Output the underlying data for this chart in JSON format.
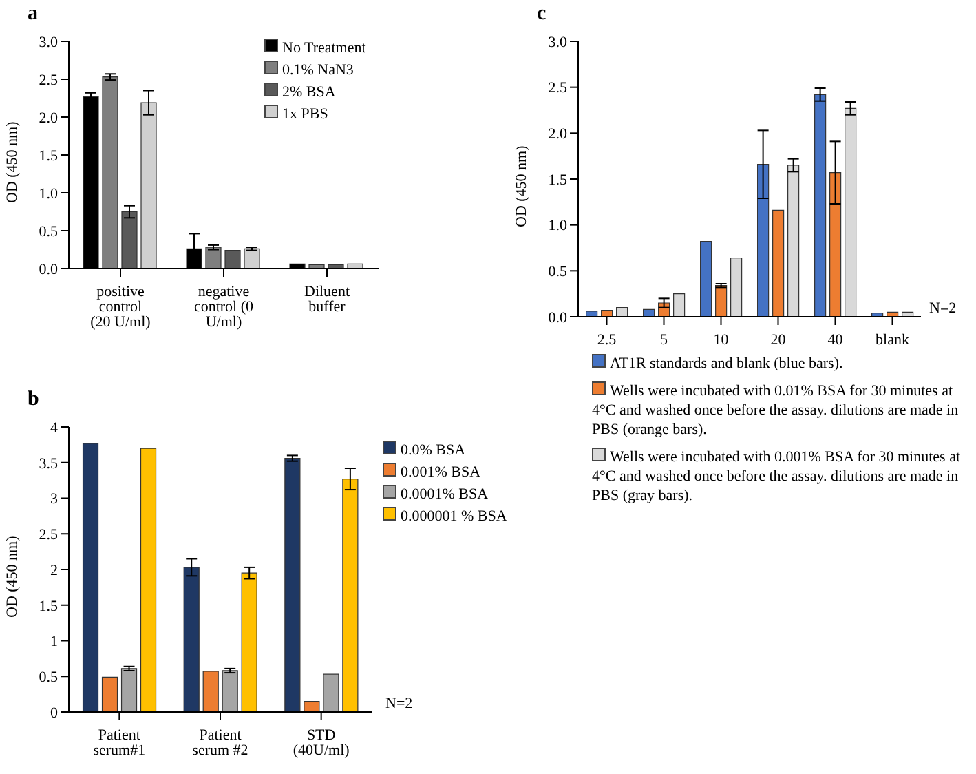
{
  "chart_data": [
    {
      "type": "bar",
      "title": "a",
      "ylabel": "OD (450 nm)",
      "categories": [
        "positive control (20 U/ml)",
        "negative control (0 U/ml)",
        "Diluent buffer"
      ],
      "series": [
        {
          "name": "No Treatment",
          "color": "#000000",
          "values": [
            2.27,
            0.26,
            0.06
          ],
          "errors": [
            0.05,
            0.2,
            null
          ]
        },
        {
          "name": "0.1% NaN3",
          "color": "#7f7f7f",
          "values": [
            2.53,
            0.28,
            0.05
          ],
          "errors": [
            0.04,
            0.03,
            null
          ]
        },
        {
          "name": "2% BSA",
          "color": "#595959",
          "values": [
            0.75,
            0.24,
            0.05
          ],
          "errors": [
            0.08,
            null,
            null
          ]
        },
        {
          "name": "1x PBS",
          "color": "#d0d0d0",
          "values": [
            2.19,
            0.26,
            0.06
          ],
          "errors": [
            0.16,
            0.02,
            null
          ]
        }
      ],
      "ylim": [
        0,
        3
      ],
      "yticks": [
        {
          "value": 0,
          "label": "0.0"
        },
        0.5,
        {
          "value": 1,
          "label": "1.0"
        },
        1.5,
        {
          "value": 2,
          "label": "2.0"
        },
        2.5,
        {
          "value": 3,
          "label": "3.0"
        }
      ],
      "grid": false,
      "legend": "top right"
    },
    {
      "type": "bar",
      "title": "b",
      "ylabel": "OD (450 nm)",
      "categories": [
        "Patient serum#1",
        "Patient serum #2",
        "STD (40U/ml)"
      ],
      "series": [
        {
          "name": "0.0% BSA",
          "color": "#1f3864",
          "values": [
            3.77,
            2.03,
            3.56
          ],
          "errors": [
            null,
            0.12,
            0.04
          ]
        },
        {
          "name": "0.001% BSA",
          "color": "#ed7d31",
          "values": [
            0.49,
            0.57,
            0.15
          ],
          "errors": [
            null,
            null,
            null
          ]
        },
        {
          "name": "0.0001% BSA",
          "color": "#a5a5a5",
          "values": [
            0.61,
            0.58,
            0.53
          ],
          "errors": [
            0.03,
            0.03,
            null
          ]
        },
        {
          "name": "0.000001 % BSA",
          "color": "#ffc000",
          "values": [
            3.7,
            1.95,
            3.27
          ],
          "errors": [
            null,
            0.08,
            0.15
          ]
        }
      ],
      "ylim": [
        0,
        4
      ],
      "yticks": [
        0,
        0.5,
        1,
        1.5,
        2,
        2.5,
        3,
        3.5,
        4
      ],
      "grid": false,
      "legend": "right",
      "annotations": [
        "N=2"
      ]
    },
    {
      "type": "bar",
      "title": "c",
      "ylabel": "OD (450 nm)",
      "categories": [
        "2.5",
        "5",
        "10",
        "20",
        "40",
        "blank"
      ],
      "series": [
        {
          "name": "AT1R standards and blank (blue bars).",
          "color": "#4472c4",
          "values": [
            0.06,
            0.08,
            0.82,
            1.66,
            2.42,
            0.04
          ],
          "errors": [
            null,
            null,
            null,
            0.37,
            0.07,
            null
          ]
        },
        {
          "name": "Wells were incubated with 0.01% BSA for 30 minutes at 4°C and washed once before the assay. dilutions are made in PBS (orange bars).",
          "color": "#ed7d31",
          "values": [
            0.07,
            0.15,
            0.34,
            1.16,
            1.57,
            0.05
          ],
          "errors": [
            null,
            0.05,
            0.02,
            null,
            0.34,
            null
          ]
        },
        {
          "name": "Wells were incubated with 0.001% BSA for 30 minutes at 4°C and washed once before the assay. dilutions are made in PBS (gray bars).",
          "color": "#d9d9d9",
          "values": [
            0.1,
            0.25,
            0.64,
            1.65,
            2.27,
            0.05
          ],
          "errors": [
            null,
            null,
            null,
            0.07,
            0.07,
            null
          ]
        }
      ],
      "ylim": [
        0,
        3
      ],
      "yticks": [
        {
          "value": 0,
          "label": "0.0"
        },
        0.5,
        {
          "value": 1,
          "label": "1.0"
        },
        1.5,
        {
          "value": 2,
          "label": "2.0"
        },
        2.5,
        {
          "value": 3,
          "label": "3.0"
        }
      ],
      "grid": false,
      "legend": "bottom",
      "annotations": [
        "N=2"
      ]
    }
  ]
}
